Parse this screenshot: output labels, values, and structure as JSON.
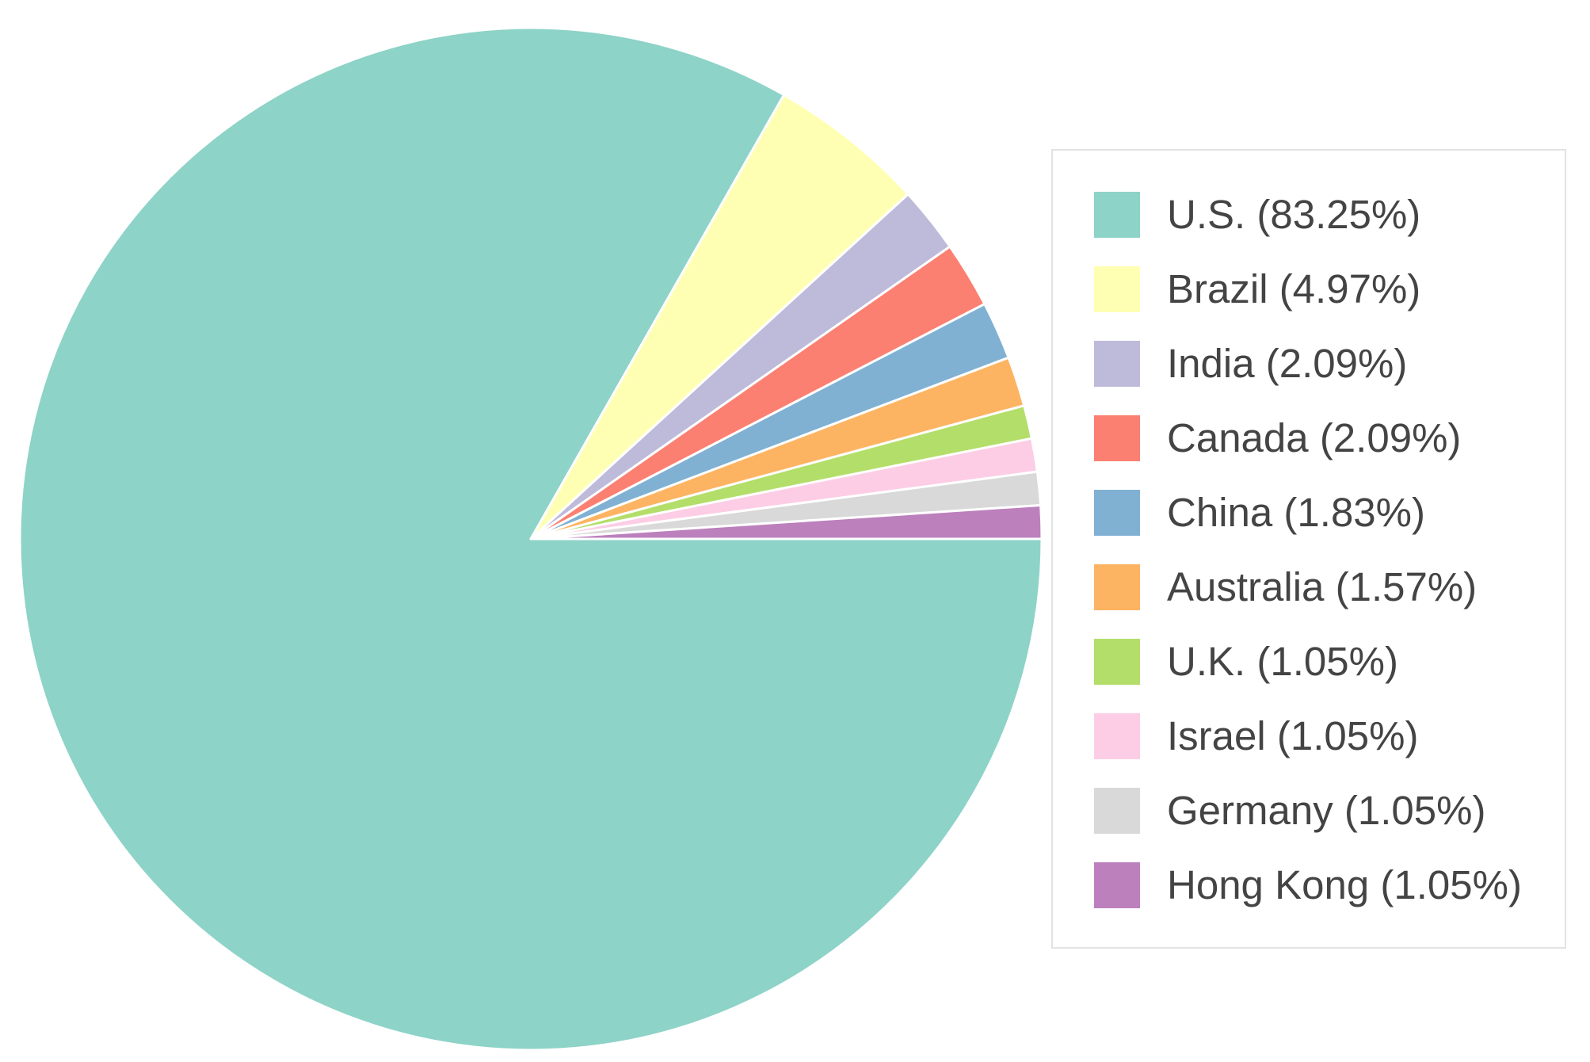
{
  "chart_data": {
    "type": "pie",
    "start_angle": "3 o'clock, clockwise",
    "legend_position": "right",
    "slices": [
      {
        "label": "U.S.",
        "value": 83.25,
        "legend_text": "U.S. (83.25%)",
        "color": "#8dd3c7"
      },
      {
        "label": "Brazil",
        "value": 4.97,
        "legend_text": "Brazil (4.97%)",
        "color": "#ffffb3"
      },
      {
        "label": "India",
        "value": 2.09,
        "legend_text": "India (2.09%)",
        "color": "#bebada"
      },
      {
        "label": "Canada",
        "value": 2.09,
        "legend_text": "Canada (2.09%)",
        "color": "#fb8072"
      },
      {
        "label": "China",
        "value": 1.83,
        "legend_text": "China (1.83%)",
        "color": "#80b1d3"
      },
      {
        "label": "Australia",
        "value": 1.57,
        "legend_text": "Australia (1.57%)",
        "color": "#fdb462"
      },
      {
        "label": "U.K.",
        "value": 1.05,
        "legend_text": "U.K. (1.05%)",
        "color": "#b3de69"
      },
      {
        "label": "Israel",
        "value": 1.05,
        "legend_text": "Israel (1.05%)",
        "color": "#fccde5"
      },
      {
        "label": "Germany",
        "value": 1.05,
        "legend_text": "Germany (1.05%)",
        "color": "#d9d9d9"
      },
      {
        "label": "Hong Kong",
        "value": 1.05,
        "legend_text": "Hong Kong (1.05%)",
        "color": "#bc80bd"
      }
    ]
  }
}
